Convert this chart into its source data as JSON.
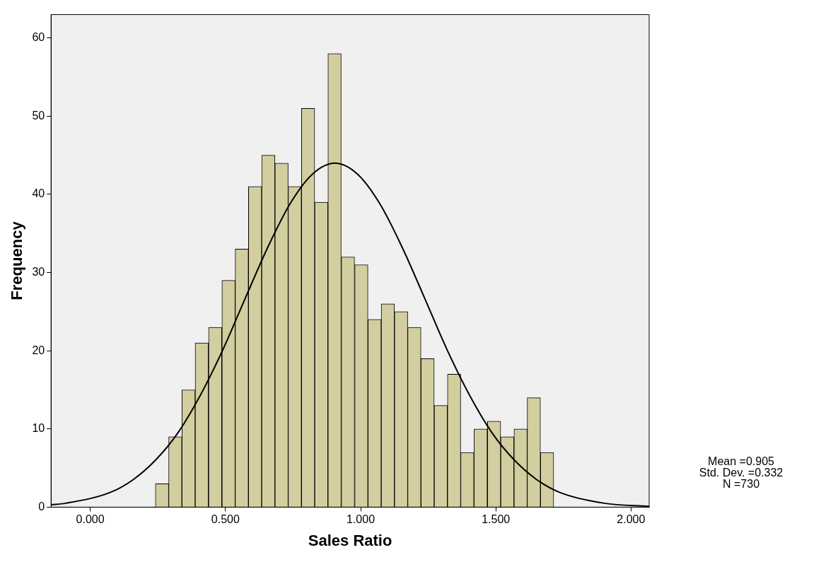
{
  "chart_data": {
    "type": "histogram",
    "xlabel": "Sales Ratio",
    "ylabel": "Frequency",
    "bins": [
      0.241,
      0.29,
      0.339,
      0.388,
      0.437,
      0.487,
      0.536,
      0.585,
      0.634,
      0.683,
      0.732,
      0.781,
      0.83,
      0.879,
      0.928,
      0.978,
      1.027,
      1.076,
      1.125,
      1.174,
      1.223,
      1.272,
      1.321,
      1.37,
      1.419,
      1.469,
      1.518,
      1.567,
      1.616,
      1.665,
      1.714
    ],
    "values": [
      3,
      9,
      15,
      21,
      23,
      29,
      33,
      41,
      45,
      44,
      41,
      51,
      39,
      58,
      32,
      31,
      24,
      26,
      25,
      23,
      19,
      13,
      17,
      7,
      10,
      11,
      9,
      10,
      14,
      7
    ],
    "color": "#d3cea0",
    "series": [
      {
        "type": "line",
        "color": "#000000",
        "x": [
          -0.145,
          -0.091,
          0.075,
          0.158,
          0.241,
          0.324,
          0.407,
          0.49,
          0.573,
          0.656,
          0.739,
          0.822,
          0.905,
          0.988,
          1.071,
          1.154,
          1.237,
          1.32,
          1.403,
          1.486,
          1.569,
          1.652,
          1.735,
          1.901,
          2.067
        ],
        "values": [
          0.3,
          0.5,
          1.9,
          3.5,
          6.0,
          9.5,
          14.3,
          20.1,
          26.7,
          33.2,
          38.8,
          42.6,
          44,
          42.6,
          38.8,
          33.2,
          26.7,
          20.1,
          14.3,
          9.5,
          6.0,
          3.5,
          1.9,
          0.5,
          0.1
        ]
      }
    ],
    "xlim": [
      -0.145,
      2.067
    ],
    "ylim": [
      0,
      63
    ],
    "xticks": [
      {
        "value": 0,
        "label": "0.000"
      },
      {
        "value": 0.5,
        "label": "0.500"
      },
      {
        "value": 1,
        "label": "1.000"
      },
      {
        "value": 1.5,
        "label": "1.500"
      },
      {
        "value": 2,
        "label": "2.000"
      }
    ],
    "yticks": [
      0,
      10,
      20,
      30,
      40,
      50,
      60
    ],
    "grid": false,
    "legend": false,
    "annotations": [
      "Mean =0.905",
      "Std. Dev. =0.332",
      "N =730"
    ]
  }
}
